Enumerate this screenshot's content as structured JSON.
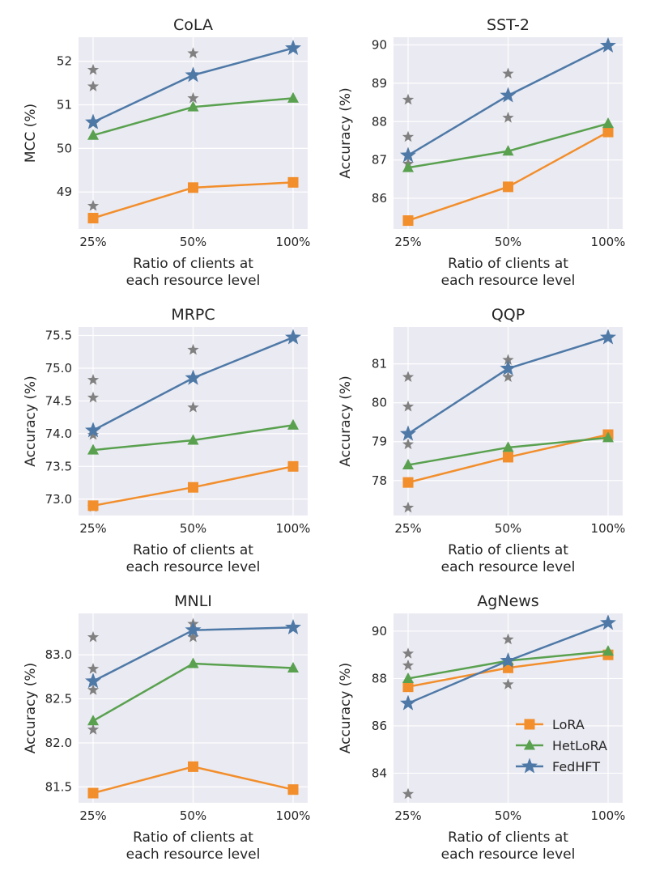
{
  "colors": {
    "lora": "#f28e2b",
    "hetlora": "#59a14f",
    "fedhft": "#4e79a7",
    "stars": "#808080",
    "panel_bg": "#eaeaf2",
    "grid": "#ffffff"
  },
  "legend": {
    "position": "bottom-right of AgNews panel",
    "entries": [
      "LoRA",
      "HetLoRA",
      "FedHFT"
    ]
  },
  "chart_data": [
    {
      "type": "line",
      "title": "CoLA",
      "ylabel": "MCC (%)",
      "xlabel": [
        "Ratio of clients at",
        "each resource level"
      ],
      "categories": [
        "25%",
        "50%",
        "100%"
      ],
      "ylim": [
        48.15,
        52.55
      ],
      "yticks": [
        49,
        50,
        51,
        52
      ],
      "series": [
        {
          "name": "LoRA",
          "values": [
            48.4,
            49.1,
            49.22
          ]
        },
        {
          "name": "HetLoRA",
          "values": [
            50.3,
            50.95,
            51.15
          ]
        },
        {
          "name": "FedHFT",
          "values": [
            50.6,
            51.68,
            52.3
          ]
        }
      ],
      "stars": [
        [
          0,
          51.8
        ],
        [
          0,
          51.42
        ],
        [
          0,
          50.57
        ],
        [
          0,
          48.68
        ],
        [
          1,
          52.18
        ],
        [
          1,
          51.15
        ]
      ]
    },
    {
      "type": "line",
      "title": "SST-2",
      "ylabel": "Accuracy (%)",
      "xlabel": [
        "Ratio of clients at",
        "each resource level"
      ],
      "categories": [
        "25%",
        "50%",
        "100%"
      ],
      "ylim": [
        85.2,
        90.2
      ],
      "yticks": [
        86,
        87,
        88,
        89,
        90
      ],
      "series": [
        {
          "name": "LoRA",
          "values": [
            85.42,
            86.3,
            87.73
          ]
        },
        {
          "name": "HetLoRA",
          "values": [
            86.8,
            87.23,
            87.95
          ]
        },
        {
          "name": "FedHFT",
          "values": [
            87.12,
            88.68,
            89.98
          ]
        }
      ],
      "stars": [
        [
          0,
          88.57
        ],
        [
          0,
          87.6
        ],
        [
          0,
          86.9
        ],
        [
          1,
          89.25
        ],
        [
          1,
          88.1
        ]
      ]
    },
    {
      "type": "line",
      "title": "MRPC",
      "ylabel": "Accuracy (%)",
      "xlabel": [
        "Ratio of clients at",
        "each resource level"
      ],
      "categories": [
        "25%",
        "50%",
        "100%"
      ],
      "ylim": [
        72.75,
        75.63
      ],
      "yticks": [
        73.0,
        73.5,
        74.0,
        74.5,
        75.0,
        75.5
      ],
      "yticklabels": [
        "73.0",
        "73.5",
        "74.0",
        "74.5",
        "75.0",
        "75.5"
      ],
      "series": [
        {
          "name": "LoRA",
          "values": [
            72.9,
            73.18,
            73.5
          ]
        },
        {
          "name": "HetLoRA",
          "values": [
            73.75,
            73.9,
            74.13
          ]
        },
        {
          "name": "FedHFT",
          "values": [
            74.05,
            74.85,
            75.47
          ]
        }
      ],
      "stars": [
        [
          0,
          74.82
        ],
        [
          0,
          74.55
        ],
        [
          0,
          73.98
        ],
        [
          0,
          72.88
        ],
        [
          1,
          75.28
        ],
        [
          1,
          74.4
        ]
      ]
    },
    {
      "type": "line",
      "title": "QQP",
      "ylabel": "Accuracy (%)",
      "xlabel": [
        "Ratio of clients at",
        "each resource level"
      ],
      "categories": [
        "25%",
        "50%",
        "100%"
      ],
      "ylim": [
        77.1,
        81.95
      ],
      "yticks": [
        78,
        79,
        80,
        81
      ],
      "series": [
        {
          "name": "LoRA",
          "values": [
            77.95,
            78.6,
            79.18
          ]
        },
        {
          "name": "HetLoRA",
          "values": [
            78.4,
            78.85,
            79.1
          ]
        },
        {
          "name": "FedHFT",
          "values": [
            79.2,
            80.88,
            81.68
          ]
        }
      ],
      "stars": [
        [
          0,
          80.66
        ],
        [
          0,
          79.9
        ],
        [
          0,
          78.93
        ],
        [
          0,
          77.3
        ],
        [
          1,
          81.1
        ],
        [
          1,
          80.66
        ]
      ]
    },
    {
      "type": "line",
      "title": "MNLI",
      "ylabel": "Accuracy (%)",
      "xlabel": [
        "Ratio of clients at",
        "each resource level"
      ],
      "categories": [
        "25%",
        "50%",
        "100%"
      ],
      "ylim": [
        81.32,
        83.47
      ],
      "yticks": [
        81.5,
        82.0,
        82.5,
        83.0
      ],
      "yticklabels": [
        "81.5",
        "82.0",
        "82.5",
        "83.0"
      ],
      "series": [
        {
          "name": "LoRA",
          "values": [
            81.43,
            81.73,
            81.47
          ]
        },
        {
          "name": "HetLoRA",
          "values": [
            82.25,
            82.9,
            82.85
          ]
        },
        {
          "name": "FedHFT",
          "values": [
            82.7,
            83.28,
            83.31
          ]
        }
      ],
      "stars": [
        [
          0,
          83.2
        ],
        [
          0,
          82.84
        ],
        [
          0,
          82.6
        ],
        [
          0,
          82.15
        ],
        [
          1,
          83.35
        ],
        [
          1,
          83.2
        ]
      ]
    },
    {
      "type": "line",
      "title": "AgNews",
      "ylabel": "Accuracy (%)",
      "xlabel": [
        "Ratio of clients at",
        "each resource level"
      ],
      "categories": [
        "25%",
        "50%",
        "100%"
      ],
      "ylim": [
        82.75,
        90.75
      ],
      "yticks": [
        84,
        86,
        88,
        90
      ],
      "series": [
        {
          "name": "LoRA",
          "values": [
            87.65,
            88.45,
            89.0
          ]
        },
        {
          "name": "HetLoRA",
          "values": [
            88.0,
            88.75,
            89.15
          ]
        },
        {
          "name": "FedHFT",
          "values": [
            86.95,
            88.75,
            90.35
          ]
        }
      ],
      "stars": [
        [
          0,
          89.05
        ],
        [
          0,
          88.55
        ],
        [
          0,
          83.12
        ],
        [
          1,
          89.65
        ],
        [
          1,
          87.75
        ]
      ]
    }
  ]
}
